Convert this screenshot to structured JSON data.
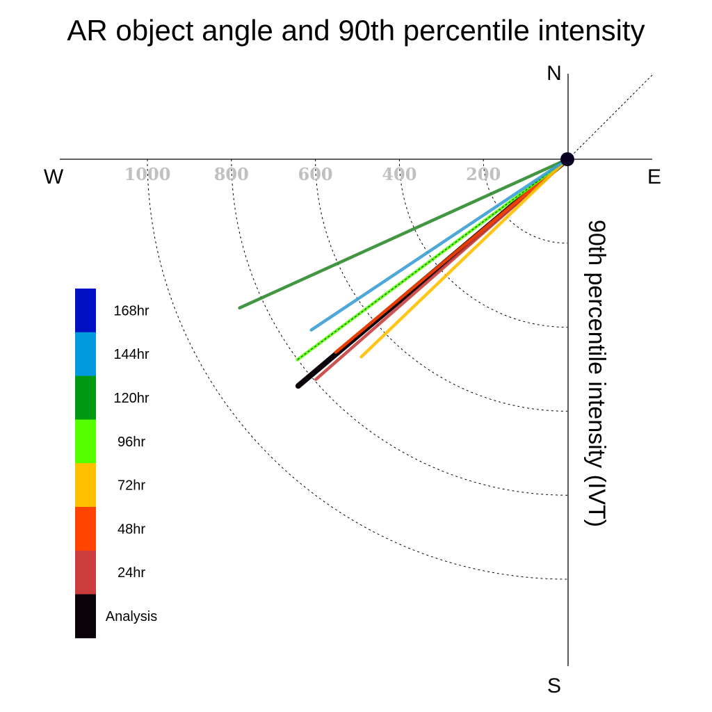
{
  "chart_data": {
    "type": "polar-vector",
    "title": "AR object angle and 90th percentile intensity",
    "ylabel": "90th percentile intensity (IVT)",
    "compass": {
      "north": "N",
      "south": "S",
      "east": "E",
      "west": "W"
    },
    "radial_ticks": [
      200,
      400,
      600,
      800,
      1000
    ],
    "radial_tick_labels": [
      "200",
      "400",
      "600",
      "800",
      "1000"
    ],
    "rlim": [
      0,
      1000
    ],
    "grid": true,
    "legend_position": "left",
    "series": [
      {
        "name": "168hr",
        "color": "#0011c4",
        "angle_deg": null,
        "value": null
      },
      {
        "name": "144hr",
        "color": "#3a9fd4",
        "angle_deg": 236.3,
        "value": 733
      },
      {
        "name": "120hr",
        "color": "#2e8b2e",
        "angle_deg": 245.6,
        "value": 857
      },
      {
        "name": "96hr",
        "color": "#55ff00",
        "angle_deg": 233.4,
        "value": 801
      },
      {
        "name": "72hr",
        "color": "#ffc000",
        "angle_deg": 226.2,
        "value": 680
      },
      {
        "name": "48hr",
        "color": "#ff4400",
        "angle_deg": 230.2,
        "value": 718
      },
      {
        "name": "24hr",
        "color": "#c84040",
        "angle_deg": 228.8,
        "value": 796
      },
      {
        "name": "Analysis",
        "color": "#0b0209",
        "angle_deg": 229.9,
        "value": 838
      }
    ],
    "legend": [
      {
        "label": "168hr",
        "color": "#0011c4"
      },
      {
        "label": "144hr",
        "color": "#0099dd"
      },
      {
        "label": "120hr",
        "color": "#009911"
      },
      {
        "label": "96hr",
        "color": "#55ff00"
      },
      {
        "label": "72hr",
        "color": "#ffc000"
      },
      {
        "label": "48hr",
        "color": "#ff4400"
      },
      {
        "label": "24hr",
        "color": "#cc3c3c"
      },
      {
        "label": "Analysis",
        "color": "#0b0209"
      }
    ]
  }
}
